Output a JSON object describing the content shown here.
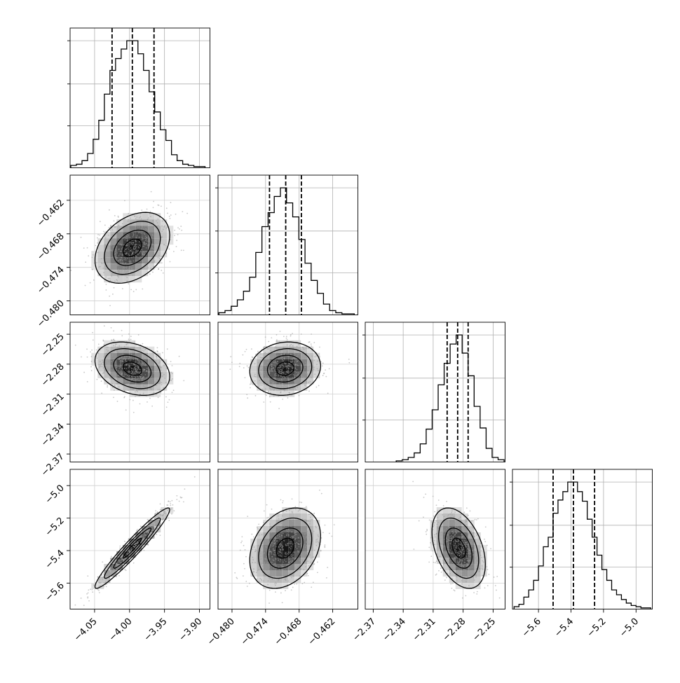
{
  "chart_data": {
    "type": "corner",
    "grid": true,
    "params": [
      {
        "range": [
          -4.085,
          -3.885
        ],
        "ticks": [
          "−4.05",
          "−4.00",
          "−3.95",
          "−3.90"
        ],
        "tick_values": [
          -4.05,
          -4.0,
          -3.95,
          -3.9
        ],
        "quantiles": [
          -4.025,
          -3.996,
          -3.965
        ],
        "hist_centers": [
          -4.08,
          -4.072,
          -4.064,
          -4.056,
          -4.048,
          -4.04,
          -4.032,
          -4.024,
          -4.016,
          -4.008,
          -4.0,
          -3.992,
          -3.984,
          -3.976,
          -3.968,
          -3.96,
          -3.952,
          -3.944,
          -3.936,
          -3.928,
          -3.92,
          -3.912,
          -3.904,
          -3.896
        ],
        "hist_counts": [
          2,
          3,
          6,
          12,
          24,
          40,
          62,
          82,
          92,
          100,
          107,
          107,
          96,
          82,
          64,
          47,
          32,
          23,
          11,
          6,
          3,
          2,
          1,
          1
        ]
      },
      {
        "range": [
          -0.4825,
          -0.4575
        ],
        "ticks": [
          "−0.480",
          "−0.474",
          "−0.468",
          "−0.462"
        ],
        "tick_values": [
          -0.48,
          -0.474,
          -0.468,
          -0.462
        ],
        "quantiles": [
          -0.4733,
          -0.4704,
          -0.4676
        ],
        "hist_centers": [
          -0.4818,
          -0.4807,
          -0.4796,
          -0.4785,
          -0.4774,
          -0.4763,
          -0.4752,
          -0.4741,
          -0.473,
          -0.4719,
          -0.4708,
          -0.4697,
          -0.4686,
          -0.4675,
          -0.4664,
          -0.4653,
          -0.4642,
          -0.4631,
          -0.462,
          -0.4609,
          -0.4598,
          -0.4587
        ],
        "hist_counts": [
          2,
          4,
          8,
          14,
          22,
          35,
          58,
          82,
          95,
          110,
          118,
          104,
          91,
          70,
          48,
          32,
          20,
          10,
          4,
          2,
          1,
          1
        ]
      },
      {
        "range": [
          -2.378,
          -2.238
        ],
        "ticks": [
          "−2.37",
          "−2.34",
          "−2.31",
          "−2.28",
          "−2.25"
        ],
        "tick_values": [
          -2.37,
          -2.34,
          -2.31,
          -2.28,
          -2.25
        ],
        "quantiles": [
          -2.296,
          -2.2855,
          -2.275
        ],
        "hist_centers": [
          -2.344,
          -2.338,
          -2.332,
          -2.326,
          -2.32,
          -2.314,
          -2.308,
          -2.302,
          -2.296,
          -2.29,
          -2.284,
          -2.278,
          -2.272,
          -2.266,
          -2.26,
          -2.254,
          -2.248,
          -2.242
        ],
        "hist_counts": [
          1,
          2,
          4,
          8,
          16,
          29,
          46,
          68,
          87,
          104,
          112,
          96,
          76,
          49,
          30,
          12,
          4,
          2
        ]
      },
      {
        "range": [
          -5.76,
          -4.9
        ],
        "ticks": [
          "−5.6",
          "−5.4",
          "−5.2",
          "−5.0"
        ],
        "tick_values": [
          -5.6,
          -5.4,
          -5.2,
          -5.0
        ],
        "quantiles": [
          -5.51,
          -5.385,
          -5.255
        ],
        "hist_centers": [
          -5.735,
          -5.705,
          -5.675,
          -5.645,
          -5.615,
          -5.585,
          -5.555,
          -5.525,
          -5.495,
          -5.465,
          -5.435,
          -5.405,
          -5.375,
          -5.345,
          -5.315,
          -5.285,
          -5.255,
          -5.225,
          -5.195,
          -5.165,
          -5.135,
          -5.105,
          -5.075,
          -5.045,
          -5.015,
          -4.985,
          -4.955,
          -4.925
        ],
        "hist_counts": [
          2,
          4,
          10,
          16,
          24,
          36,
          52,
          60,
          80,
          91,
          98,
          106,
          106,
          98,
          90,
          75,
          60,
          45,
          33,
          24,
          16,
          12,
          8,
          5,
          3,
          2,
          1,
          1
        ]
      }
    ],
    "pairs": [
      {
        "row": 1,
        "col": 0,
        "mean": [
          -3.996,
          -0.4705
        ],
        "sd": [
          0.027,
          0.0032
        ],
        "corr": 0.35
      },
      {
        "row": 2,
        "col": 0,
        "mean": [
          -3.996,
          -2.2845
        ],
        "sd": [
          0.027,
          0.0135
        ],
        "corr": -0.3
      },
      {
        "row": 2,
        "col": 1,
        "mean": [
          -0.4705,
          -2.2845
        ],
        "sd": [
          0.0032,
          0.0135
        ],
        "corr": 0.1
      },
      {
        "row": 3,
        "col": 0,
        "mean": [
          -3.996,
          -5.385
        ],
        "sd": [
          0.027,
          0.125
        ],
        "corr": 0.96
      },
      {
        "row": 3,
        "col": 1,
        "mean": [
          -0.4705,
          -5.385
        ],
        "sd": [
          0.0032,
          0.125
        ],
        "corr": 0.3
      },
      {
        "row": 3,
        "col": 2,
        "mean": [
          -2.2845,
          -5.385
        ],
        "sd": [
          0.0135,
          0.125
        ],
        "corr": -0.4
      }
    ]
  }
}
